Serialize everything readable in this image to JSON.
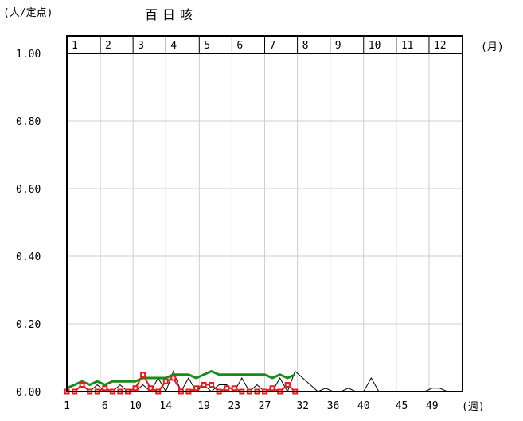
{
  "chart_data": {
    "type": "line",
    "title": "百日咳",
    "ylabel": "(人/定点)",
    "xlabel": "(週)",
    "month_unit": "(月)",
    "ylim": [
      0,
      1.0
    ],
    "xlim": [
      1,
      53
    ],
    "grid": true,
    "y_ticks": [
      "0.00",
      "0.20",
      "0.40",
      "0.60",
      "0.80",
      "1.00"
    ],
    "y_tick_values": [
      0,
      0.2,
      0.4,
      0.6,
      0.8,
      1.0
    ],
    "x_ticks": [
      "1",
      "6",
      "10",
      "14",
      "19",
      "23",
      "27",
      "32",
      "36",
      "40",
      "45",
      "49"
    ],
    "x_tick_weeks": [
      1,
      6,
      10,
      14,
      19,
      23,
      27,
      32,
      36,
      40,
      45,
      49
    ],
    "months": [
      "1",
      "2",
      "3",
      "4",
      "5",
      "6",
      "7",
      "8",
      "9",
      "10",
      "11",
      "12"
    ],
    "month_start_weeks": [
      1,
      5.4,
      9.7,
      14.0,
      18.4,
      22.7,
      27.0,
      31.3,
      35.6,
      40.0,
      44.3,
      48.6,
      53
    ],
    "series": [
      {
        "color": "#000000",
        "marker": "none",
        "x": [
          1,
          2,
          3,
          4,
          5,
          6,
          7,
          8,
          9,
          10,
          11,
          12,
          13,
          14,
          15,
          16,
          17,
          18,
          19,
          20,
          21,
          22,
          23,
          24,
          25,
          26,
          27,
          28,
          29,
          30,
          31,
          32,
          33,
          34,
          35,
          36,
          37,
          38,
          39,
          40,
          41,
          42,
          43,
          44,
          45,
          46,
          47,
          48,
          49,
          50,
          51,
          52
        ],
        "values": [
          0,
          0,
          0.02,
          0,
          0.02,
          0,
          0,
          0.02,
          0,
          0,
          0.02,
          0,
          0.04,
          0,
          0.06,
          0,
          0.04,
          0,
          0.02,
          0,
          0.02,
          0.02,
          0,
          0.04,
          0,
          0.02,
          0,
          0,
          0.04,
          0,
          0.06,
          0.04,
          0.02,
          0,
          0.01,
          0,
          0,
          0.01,
          0,
          0,
          0.04,
          0,
          0,
          0,
          0,
          0,
          0,
          0,
          0.01,
          0.01,
          0,
          0
        ]
      },
      {
        "color": "#1a8a1a",
        "marker": "none",
        "x": [
          1,
          2,
          3,
          4,
          5,
          6,
          7,
          8,
          9,
          10,
          11,
          12,
          13,
          14,
          15,
          16,
          17,
          18,
          19,
          20,
          21,
          22,
          23,
          24,
          25,
          26,
          27,
          28,
          29,
          30,
          31
        ],
        "values": [
          0.01,
          0.02,
          0.03,
          0.02,
          0.03,
          0.02,
          0.03,
          0.03,
          0.03,
          0.03,
          0.04,
          0.04,
          0.04,
          0.04,
          0.05,
          0.05,
          0.05,
          0.04,
          0.05,
          0.06,
          0.05,
          0.05,
          0.05,
          0.05,
          0.05,
          0.05,
          0.05,
          0.04,
          0.05,
          0.04,
          0.05
        ]
      },
      {
        "color": "#e02020",
        "marker": "square",
        "x": [
          1,
          2,
          3,
          4,
          5,
          6,
          7,
          8,
          9,
          10,
          11,
          12,
          13,
          14,
          15,
          16,
          17,
          18,
          19,
          20,
          21,
          22,
          23,
          24,
          25,
          26,
          27,
          28,
          29,
          30,
          31
        ],
        "values": [
          0,
          0,
          0.02,
          0,
          0,
          0.01,
          0,
          0,
          0,
          0.01,
          0.05,
          0.01,
          0,
          0.03,
          0.04,
          0,
          0,
          0.01,
          0.02,
          0.02,
          0,
          0.01,
          0.01,
          0,
          0,
          0,
          0,
          0.01,
          0,
          0.02,
          0
        ]
      }
    ]
  }
}
